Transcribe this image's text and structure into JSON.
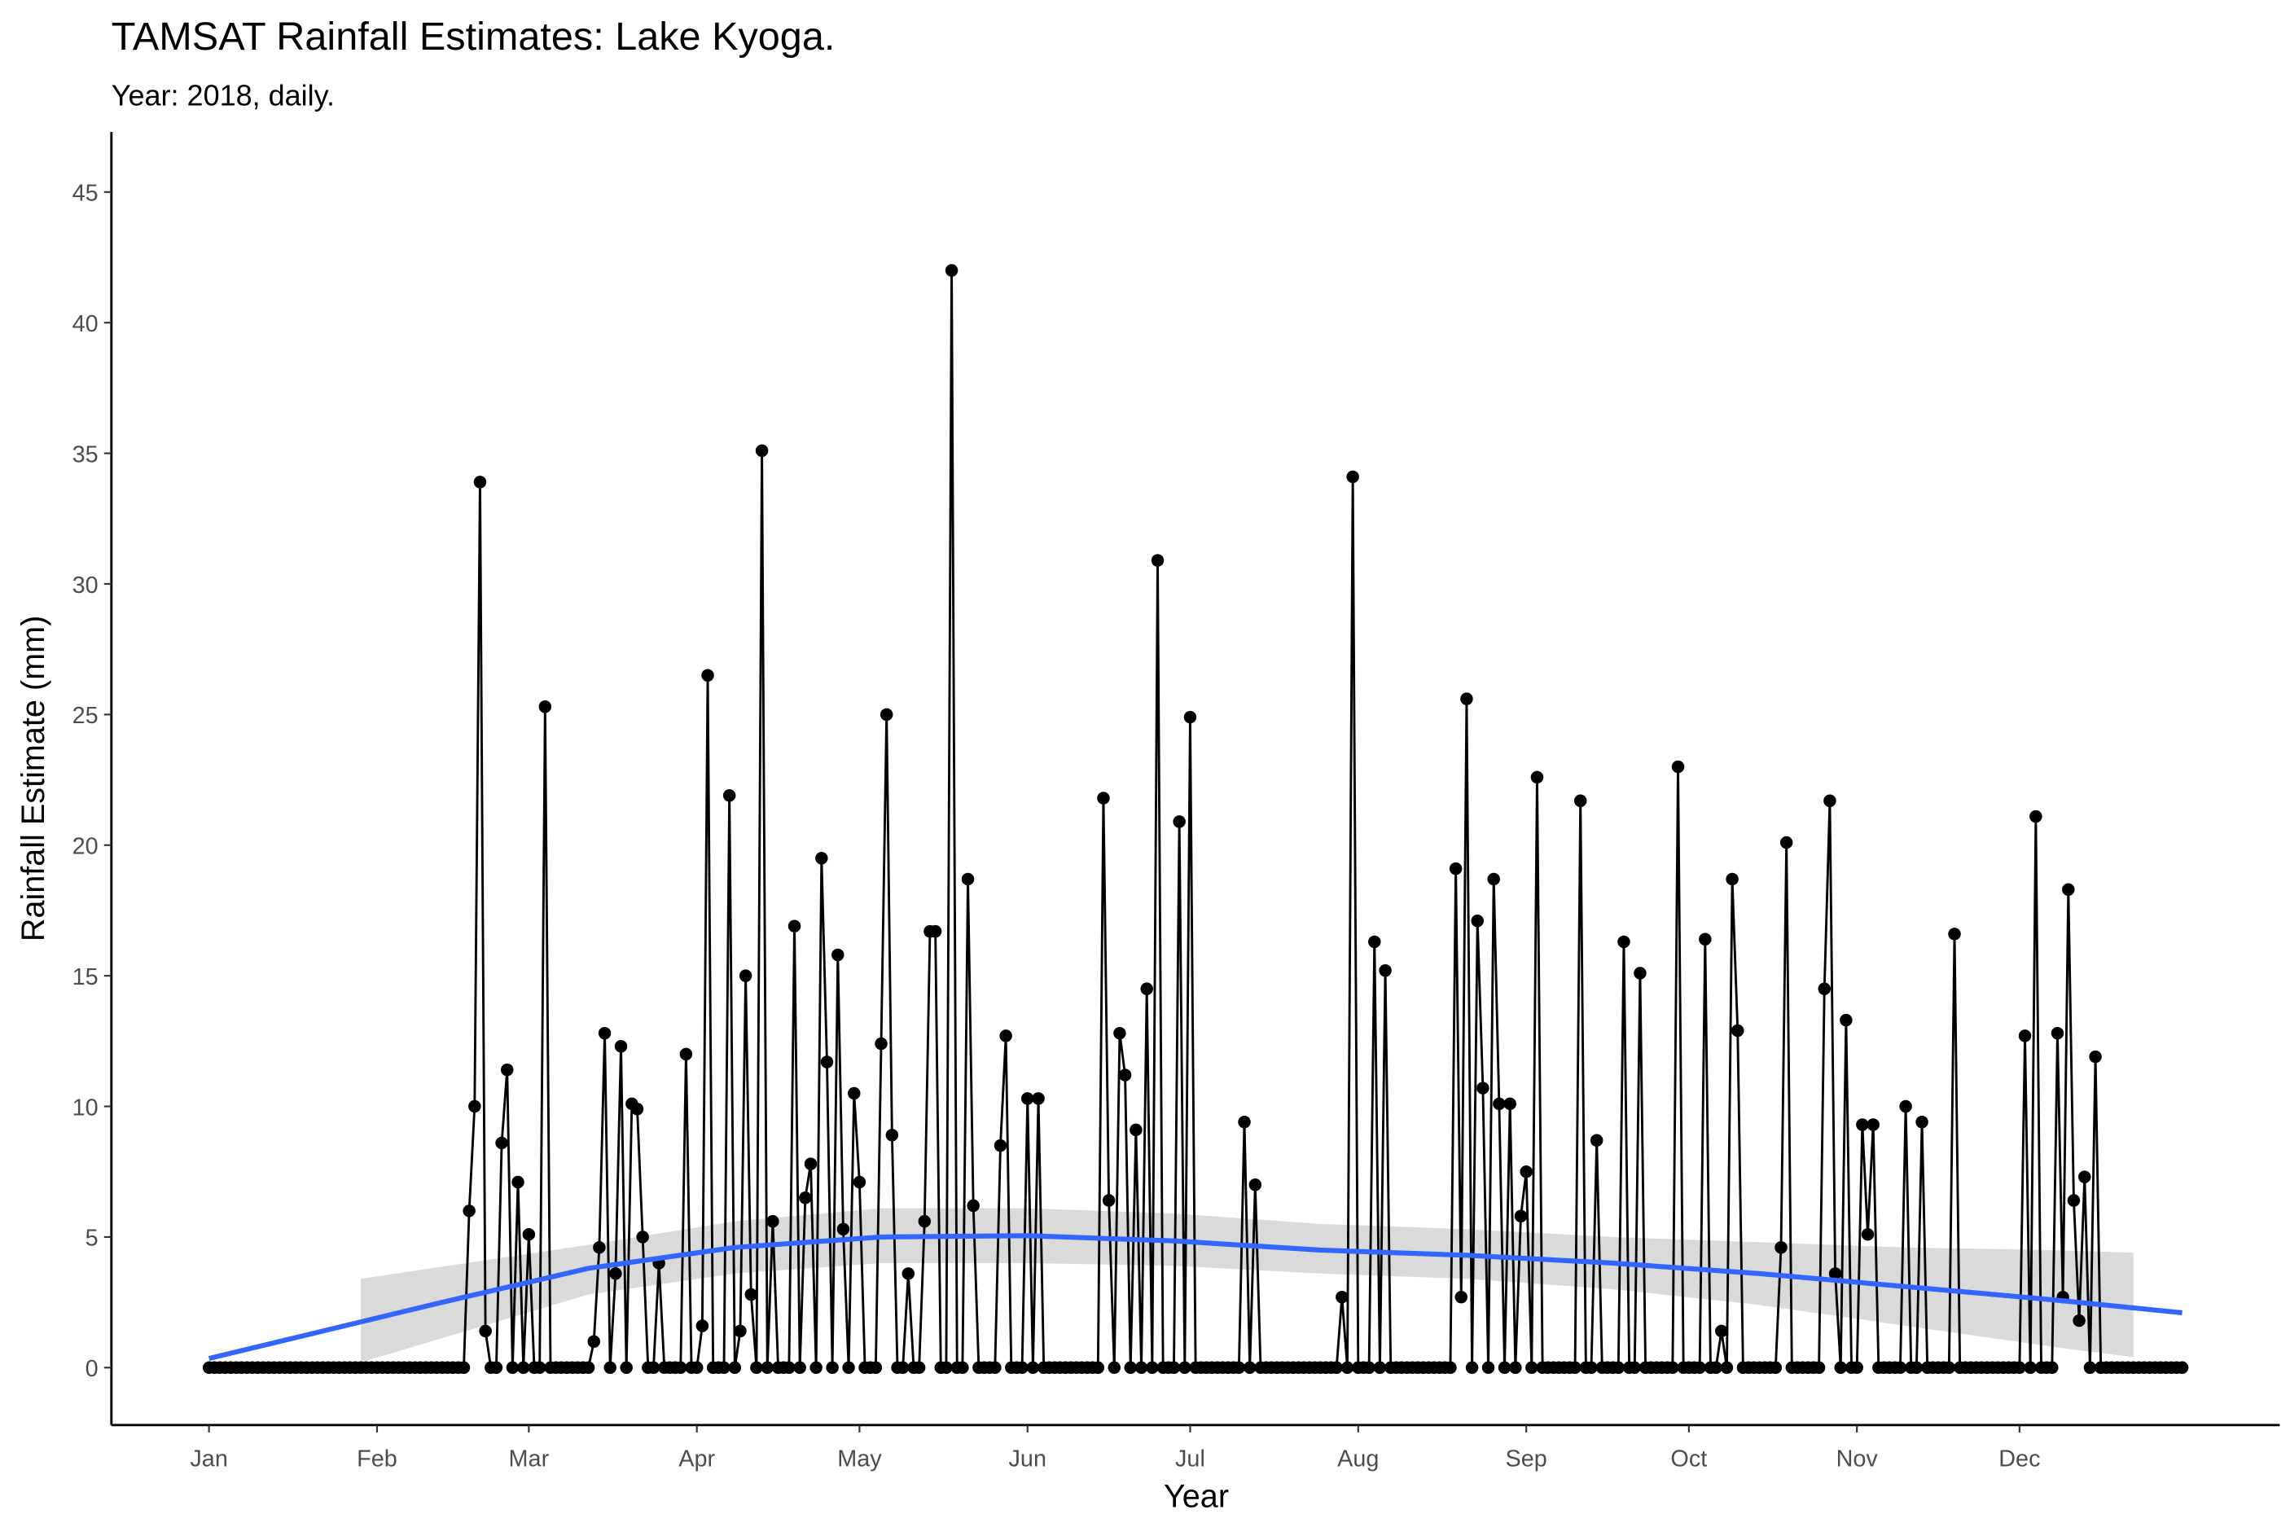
{
  "chart_data": {
    "type": "line",
    "title": "TAMSAT Rainfall Estimates: Lake Kyoga.",
    "subtitle": "Year: 2018, daily.",
    "x_label": "Year",
    "y_label": "Rainfall Estimate (mm)",
    "color": "#000000",
    "x": [
      1,
      2,
      3,
      4,
      5,
      6,
      7,
      8,
      9,
      10,
      11,
      12,
      13,
      14,
      15,
      16,
      17,
      18,
      19,
      20,
      21,
      22,
      23,
      24,
      25,
      26,
      27,
      28,
      29,
      30,
      31,
      32,
      33,
      34,
      35,
      36,
      37,
      38,
      39,
      40,
      41,
      42,
      43,
      44,
      45,
      46,
      47,
      48,
      49,
      50,
      51,
      52,
      53,
      54,
      55,
      56,
      57,
      58,
      59,
      60,
      61,
      62,
      63,
      64,
      65,
      66,
      67,
      68,
      69,
      70,
      71,
      72,
      73,
      74,
      75,
      76,
      77,
      78,
      79,
      80,
      81,
      82,
      83,
      84,
      85,
      86,
      87,
      88,
      89,
      90,
      91,
      92,
      93,
      94,
      95,
      96,
      97,
      98,
      99,
      100,
      101,
      102,
      103,
      104,
      105,
      106,
      107,
      108,
      109,
      110,
      111,
      112,
      113,
      114,
      115,
      116,
      117,
      118,
      119,
      120,
      121,
      122,
      123,
      124,
      125,
      126,
      127,
      128,
      129,
      130,
      131,
      132,
      133,
      134,
      135,
      136,
      137,
      138,
      139,
      140,
      141,
      142,
      143,
      144,
      145,
      146,
      147,
      148,
      149,
      150,
      151,
      152,
      153,
      154,
      155,
      156,
      157,
      158,
      159,
      160,
      161,
      162,
      163,
      164,
      165,
      166,
      167,
      168,
      169,
      170,
      171,
      172,
      173,
      174,
      175,
      176,
      177,
      178,
      179,
      180,
      181,
      182,
      183,
      184,
      185,
      186,
      187,
      188,
      189,
      190,
      191,
      192,
      193,
      194,
      195,
      196,
      197,
      198,
      199,
      200,
      201,
      202,
      203,
      204,
      205,
      206,
      207,
      208,
      209,
      210,
      211,
      212,
      213,
      214,
      215,
      216,
      217,
      218,
      219,
      220,
      221,
      222,
      223,
      224,
      225,
      226,
      227,
      228,
      229,
      230,
      231,
      232,
      233,
      234,
      235,
      236,
      237,
      238,
      239,
      240,
      241,
      242,
      243,
      244,
      245,
      246,
      247,
      248,
      249,
      250,
      251,
      252,
      253,
      254,
      255,
      256,
      257,
      258,
      259,
      260,
      261,
      262,
      263,
      264,
      265,
      266,
      267,
      268,
      269,
      270,
      271,
      272,
      273,
      274,
      275,
      276,
      277,
      278,
      279,
      280,
      281,
      282,
      283,
      284,
      285,
      286,
      287,
      288,
      289,
      290,
      291,
      292,
      293,
      294,
      295,
      296,
      297,
      298,
      299,
      300,
      301,
      302,
      303,
      304,
      305,
      306,
      307,
      308,
      309,
      310,
      311,
      312,
      313,
      314,
      315,
      316,
      317,
      318,
      319,
      320,
      321,
      322,
      323,
      324,
      325,
      326,
      327,
      328,
      329,
      330,
      331,
      332,
      333,
      334,
      335,
      336,
      337,
      338,
      339,
      340,
      341,
      342,
      343,
      344,
      345,
      346,
      347,
      348,
      349,
      350,
      351,
      352,
      353,
      354,
      355,
      356,
      357,
      358,
      359,
      360,
      361,
      362,
      363,
      364,
      365
    ],
    "values": [
      0,
      0,
      0,
      0,
      0,
      0,
      0,
      0,
      0,
      0,
      0,
      0,
      0,
      0,
      0,
      0,
      0,
      0,
      0,
      0,
      0,
      0,
      0,
      0,
      0,
      0,
      0,
      0,
      0,
      0,
      0,
      0,
      0,
      0,
      0,
      0,
      0,
      0,
      0,
      0,
      0,
      0,
      0,
      0,
      0,
      0,
      0,
      0,
      6,
      10,
      33.9,
      1.4,
      0,
      0,
      8.6,
      11.4,
      0,
      7.1,
      0,
      5.1,
      0,
      0,
      25.3,
      0,
      0,
      0,
      0,
      0,
      0,
      0,
      0,
      1,
      4.6,
      12.8,
      0,
      3.6,
      12.3,
      0,
      10.1,
      9.9,
      5,
      0,
      0,
      4,
      0,
      0,
      0,
      0,
      12,
      0,
      0,
      1.6,
      26.5,
      0,
      0,
      0,
      21.9,
      0,
      1.4,
      15,
      2.8,
      0,
      35.1,
      0,
      5.6,
      0,
      0,
      0,
      16.9,
      0,
      6.5,
      7.8,
      0,
      19.5,
      11.7,
      0,
      15.8,
      5.3,
      0,
      10.5,
      7.1,
      0,
      0,
      0,
      12.4,
      25,
      8.9,
      0,
      0,
      3.6,
      0,
      0,
      5.6,
      16.7,
      16.7,
      0,
      0,
      42,
      0,
      0,
      18.7,
      6.2,
      0,
      0,
      0,
      0,
      8.5,
      12.7,
      0,
      0,
      0,
      10.3,
      0,
      10.3,
      0,
      0,
      0,
      0,
      0,
      0,
      0,
      0,
      0,
      0,
      0,
      21.8,
      6.4,
      0,
      12.8,
      11.2,
      0,
      9.1,
      0,
      14.5,
      0,
      30.9,
      0,
      0,
      0,
      20.9,
      0,
      24.9,
      0,
      0,
      0,
      0,
      0,
      0,
      0,
      0,
      0,
      9.4,
      0,
      7,
      0,
      0,
      0,
      0,
      0,
      0,
      0,
      0,
      0,
      0,
      0,
      0,
      0,
      0,
      0,
      2.7,
      0,
      34.1,
      0,
      0,
      0,
      16.3,
      0,
      15.2,
      0,
      0,
      0,
      0,
      0,
      0,
      0,
      0,
      0,
      0,
      0,
      0,
      19.1,
      2.7,
      25.6,
      0,
      17.1,
      10.7,
      0,
      18.7,
      10.1,
      0,
      10.1,
      0,
      5.8,
      7.5,
      0,
      22.6,
      0,
      0,
      0,
      0,
      0,
      0,
      0,
      21.7,
      0,
      0,
      8.7,
      0,
      0,
      0,
      0,
      16.3,
      0,
      0,
      15.1,
      0,
      0,
      0,
      0,
      0,
      0,
      23,
      0,
      0,
      0,
      0,
      16.4,
      0,
      0,
      1.4,
      0,
      18.7,
      12.9,
      0,
      0,
      0,
      0,
      0,
      0,
      0,
      4.6,
      20.1,
      0,
      0,
      0,
      0,
      0,
      0,
      14.5,
      21.7,
      3.6,
      0,
      13.3,
      0,
      0,
      9.3,
      5.1,
      9.3,
      0,
      0,
      0,
      0,
      0,
      10,
      0,
      0,
      9.4,
      0,
      0,
      0,
      0,
      0,
      16.6,
      0,
      0,
      0,
      0,
      0,
      0,
      0,
      0,
      0,
      0,
      0,
      0,
      12.7,
      0,
      21.1,
      0,
      0,
      0,
      12.8,
      2.7,
      18.3,
      6.4,
      1.8,
      7.3,
      0,
      11.9,
      0,
      0,
      0,
      0,
      0,
      0,
      0,
      0,
      0,
      0,
      0,
      0,
      0,
      0,
      0,
      0
    ],
    "trend": {
      "color": "#3366ff",
      "x": [
        1,
        44,
        71,
        98,
        125,
        152,
        179,
        206,
        233,
        260,
        287,
        314,
        341,
        365
      ],
      "values": [
        0.35,
        2.5,
        3.8,
        4.6,
        5.0,
        5.05,
        4.85,
        4.5,
        4.3,
        4.0,
        3.6,
        3.1,
        2.6,
        2.1
      ]
    },
    "ribbon": {
      "color": "#d3d3d3",
      "x": [
        29,
        71,
        98,
        125,
        152,
        179,
        206,
        233,
        260,
        287,
        314,
        341,
        356
      ],
      "lower": [
        0.2,
        2.8,
        3.6,
        4.0,
        4.0,
        3.9,
        3.6,
        3.4,
        3.0,
        2.4,
        1.6,
        0.8,
        0.4
      ],
      "upper": [
        3.4,
        4.7,
        5.6,
        6.1,
        6.1,
        5.9,
        5.5,
        5.3,
        5.0,
        4.8,
        4.6,
        4.5,
        4.4
      ]
    },
    "xlim": [
      -17,
      383
    ],
    "ylim": [
      -2.2,
      47.3
    ],
    "xticks": [
      {
        "value": 1,
        "label": "Jan"
      },
      {
        "value": 32,
        "label": "Feb"
      },
      {
        "value": 60,
        "label": "Mar"
      },
      {
        "value": 91,
        "label": "Apr"
      },
      {
        "value": 121,
        "label": "May"
      },
      {
        "value": 152,
        "label": "Jun"
      },
      {
        "value": 182,
        "label": "Jul"
      },
      {
        "value": 213,
        "label": "Aug"
      },
      {
        "value": 244,
        "label": "Sep"
      },
      {
        "value": 274,
        "label": "Oct"
      },
      {
        "value": 305,
        "label": "Nov"
      },
      {
        "value": 335,
        "label": "Dec"
      }
    ],
    "yticks": [
      0,
      5,
      10,
      15,
      20,
      25,
      30,
      35,
      40,
      45
    ],
    "grid": false
  }
}
